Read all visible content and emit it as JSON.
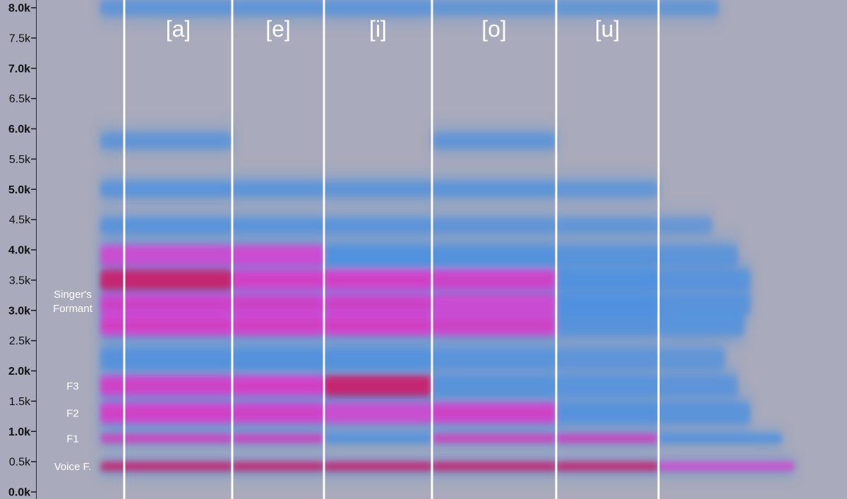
{
  "chart_data": {
    "type": "heatmap",
    "subtype": "spectrogram",
    "y_ticks": [
      {
        "value": 0,
        "label": "0.0k",
        "bold": true
      },
      {
        "value": 500,
        "label": "0.5k",
        "bold": false
      },
      {
        "value": 1000,
        "label": "1.0k",
        "bold": true
      },
      {
        "value": 1500,
        "label": "1.5k",
        "bold": false
      },
      {
        "value": 2000,
        "label": "2.0k",
        "bold": true
      },
      {
        "value": 2500,
        "label": "2.5k",
        "bold": false
      },
      {
        "value": 3000,
        "label": "3.0k",
        "bold": true
      },
      {
        "value": 3500,
        "label": "3.5k",
        "bold": false
      },
      {
        "value": 4000,
        "label": "4.0k",
        "bold": true
      },
      {
        "value": 4500,
        "label": "4.5k",
        "bold": false
      },
      {
        "value": 5000,
        "label": "5.0k",
        "bold": true
      },
      {
        "value": 5500,
        "label": "5.5k",
        "bold": false
      },
      {
        "value": 6000,
        "label": "6.0k",
        "bold": true
      },
      {
        "value": 6500,
        "label": "6.5k",
        "bold": false
      },
      {
        "value": 7000,
        "label": "7.0k",
        "bold": true
      },
      {
        "value": 7500,
        "label": "7.5k",
        "bold": false
      },
      {
        "value": 8000,
        "label": "8.0k",
        "bold": true
      }
    ],
    "ylim": [
      0,
      8000
    ],
    "vowels": [
      "[a]",
      "[e]",
      "[i]",
      "[o]",
      "[u]"
    ],
    "annotations": [
      {
        "label": "Voice F.",
        "freq": 420
      },
      {
        "label": "F1",
        "freq": 880
      },
      {
        "label": "F2",
        "freq": 1300
      },
      {
        "label": "F3",
        "freq": 1750
      },
      {
        "label": "Singer's Formant",
        "freq": 3150
      }
    ],
    "bands": [
      {
        "freq": 420,
        "intensity": [
          0.95,
          0.95,
          0.95,
          0.95,
          0.95,
          0.7
        ]
      },
      {
        "freq": 880,
        "intensity": [
          0.85,
          0.8,
          0.6,
          0.85,
          0.8,
          0.6
        ]
      },
      {
        "freq": 1300,
        "intensity": [
          0.8,
          0.75,
          0.65,
          0.75,
          0.45,
          0.35
        ]
      },
      {
        "freq": 1750,
        "intensity": [
          0.75,
          0.85,
          0.9,
          0.4,
          0.35,
          0.25
        ]
      },
      {
        "freq": 2200,
        "intensity": [
          0.45,
          0.55,
          0.5,
          0.35,
          0.25,
          0.15
        ]
      },
      {
        "freq": 2750,
        "intensity": [
          0.85,
          0.85,
          0.85,
          0.75,
          0.4,
          0.3
        ]
      },
      {
        "freq": 3100,
        "intensity": [
          0.75,
          0.75,
          0.75,
          0.7,
          0.6,
          0.35
        ]
      },
      {
        "freq": 3500,
        "intensity": [
          0.9,
          0.85,
          0.85,
          0.75,
          0.6,
          0.35
        ]
      },
      {
        "freq": 3900,
        "intensity": [
          0.65,
          0.7,
          0.6,
          0.45,
          0.4,
          0.25
        ]
      },
      {
        "freq": 4400,
        "intensity": [
          0.4,
          0.35,
          0.35,
          0.2,
          0.15,
          0.05
        ]
      },
      {
        "freq": 5000,
        "intensity": [
          0.35,
          0.3,
          0.25,
          0.3,
          0.15,
          0.0
        ]
      },
      {
        "freq": 5800,
        "intensity": [
          0.2,
          0.0,
          0.0,
          0.2,
          0.0,
          0.0
        ]
      },
      {
        "freq": 8000,
        "intensity": [
          0.2,
          0.2,
          0.25,
          0.1,
          0.1,
          0.1
        ]
      }
    ]
  },
  "colors": {
    "background": "#a9aabb",
    "low": "#4a8fe0",
    "mid": "#d83fd0",
    "high": "#c8246e",
    "divider": "#ffffff",
    "text": "#ffffff",
    "axis_text": "#111111"
  }
}
